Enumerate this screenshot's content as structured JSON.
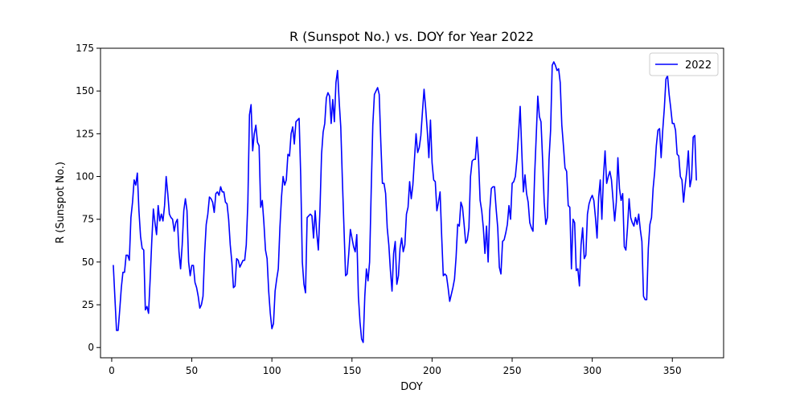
{
  "chart_data": {
    "type": "line",
    "title": "R (Sunspot No.) vs. DOY for Year 2022",
    "xlabel": "DOY",
    "ylabel": "R (Sunspot No.)",
    "xlim": [
      -7,
      382
    ],
    "ylim": [
      -6,
      175
    ],
    "xticks": [
      0,
      50,
      100,
      150,
      200,
      250,
      300,
      350
    ],
    "yticks": [
      0,
      25,
      50,
      75,
      100,
      125,
      150,
      175
    ],
    "grid": false,
    "legend_position": "top-right",
    "series": [
      {
        "name": "2022",
        "color": "#0000ff",
        "x": [
          1,
          2,
          3,
          4,
          5,
          6,
          7,
          8,
          9,
          10,
          11,
          12,
          13,
          14,
          15,
          16,
          17,
          18,
          19,
          20,
          21,
          22,
          23,
          24,
          25,
          26,
          27,
          28,
          29,
          30,
          31,
          32,
          33,
          34,
          35,
          36,
          37,
          38,
          39,
          40,
          41,
          42,
          43,
          44,
          45,
          46,
          47,
          48,
          49,
          50,
          51,
          52,
          53,
          54,
          55,
          56,
          57,
          58,
          59,
          60,
          61,
          62,
          63,
          64,
          65,
          66,
          67,
          68,
          69,
          70,
          71,
          72,
          73,
          74,
          75,
          76,
          77,
          78,
          79,
          80,
          81,
          82,
          83,
          84,
          85,
          86,
          87,
          88,
          89,
          90,
          91,
          92,
          93,
          94,
          95,
          96,
          97,
          98,
          99,
          100,
          101,
          102,
          103,
          104,
          105,
          106,
          107,
          108,
          109,
          110,
          111,
          112,
          113,
          114,
          115,
          116,
          117,
          118,
          119,
          120,
          121,
          122,
          123,
          124,
          125,
          126,
          127,
          128,
          129,
          130,
          131,
          132,
          133,
          134,
          135,
          136,
          137,
          138,
          139,
          140,
          141,
          142,
          143,
          144,
          145,
          146,
          147,
          148,
          149,
          150,
          151,
          152,
          153,
          154,
          155,
          156,
          157,
          158,
          159,
          160,
          161,
          162,
          163,
          164,
          165,
          166,
          167,
          168,
          169,
          170,
          171,
          172,
          173,
          174,
          175,
          176,
          177,
          178,
          179,
          180,
          181,
          182,
          183,
          184,
          185,
          186,
          187,
          188,
          189,
          190,
          191,
          192,
          193,
          194,
          195,
          196,
          197,
          198,
          199,
          200,
          201,
          202,
          203,
          204,
          205,
          206,
          207,
          208,
          209,
          210,
          211,
          212,
          213,
          214,
          215,
          216,
          217,
          218,
          219,
          220,
          221,
          222,
          223,
          224,
          225,
          226,
          227,
          228,
          229,
          230,
          231,
          232,
          233,
          234,
          235,
          236,
          237,
          238,
          239,
          240,
          241,
          242,
          243,
          244,
          245,
          246,
          247,
          248,
          249,
          250,
          251,
          252,
          253,
          254,
          255,
          256,
          257,
          258,
          259,
          260,
          261,
          262,
          263,
          264,
          265,
          266,
          267,
          268,
          269,
          270,
          271,
          272,
          273,
          274,
          275,
          276,
          277,
          278,
          279,
          280,
          281,
          282,
          283,
          284,
          285,
          286,
          287,
          288,
          289,
          290,
          291,
          292,
          293,
          294,
          295,
          296,
          297,
          298,
          299,
          300,
          301,
          302,
          303,
          304,
          305,
          306,
          307,
          308,
          309,
          310,
          311,
          312,
          313,
          314,
          315,
          316,
          317,
          318,
          319,
          320,
          321,
          322,
          323,
          324,
          325,
          326,
          327,
          328,
          329,
          330,
          331,
          332,
          333,
          334,
          335,
          336,
          337,
          338,
          339,
          340,
          341,
          342,
          343,
          344,
          345,
          346,
          347,
          348,
          349,
          350,
          351,
          352,
          353,
          354,
          355,
          356,
          357,
          358,
          359,
          360,
          361,
          362,
          363,
          364,
          365
        ],
        "values": [
          48,
          29,
          10,
          10,
          22,
          35,
          44,
          44,
          54,
          54,
          51,
          76,
          85,
          98,
          95,
          102,
          80,
          65,
          58,
          57,
          22,
          24,
          20,
          40,
          62,
          81,
          73,
          66,
          83,
          74,
          78,
          74,
          83,
          100,
          90,
          78,
          76,
          75,
          68,
          73,
          75,
          56,
          46,
          60,
          80,
          87,
          80,
          50,
          42,
          48,
          48,
          38,
          35,
          30,
          23,
          25,
          30,
          55,
          72,
          78,
          88,
          87,
          85,
          79,
          90,
          91,
          89,
          94,
          91,
          91,
          85,
          84,
          75,
          60,
          50,
          35,
          36,
          52,
          51,
          47,
          49,
          51,
          51,
          60,
          85,
          136,
          142,
          115,
          125,
          130,
          120,
          118,
          82,
          86,
          73,
          57,
          52,
          33,
          20,
          11,
          14,
          33,
          40,
          46,
          70,
          88,
          100,
          95,
          98,
          113,
          112,
          125,
          129,
          119,
          132,
          133,
          134,
          100,
          50,
          37,
          32,
          76,
          77,
          78,
          77,
          64,
          80,
          67,
          57,
          80,
          113,
          126,
          131,
          146,
          149,
          147,
          131,
          145,
          132,
          155,
          162,
          144,
          129,
          98,
          70,
          42,
          43,
          55,
          69,
          64,
          59,
          56,
          66,
          30,
          15,
          5,
          3,
          30,
          46,
          39,
          50,
          92,
          130,
          148,
          150,
          152,
          148,
          120,
          96,
          96,
          90,
          70,
          60,
          45,
          33,
          55,
          62,
          37,
          42,
          58,
          64,
          56,
          60,
          78,
          82,
          97,
          87,
          95,
          110,
          125,
          114,
          117,
          124,
          138,
          151,
          140,
          127,
          111,
          133,
          108,
          98,
          97,
          80,
          85,
          91,
          65,
          42,
          43,
          42,
          35,
          27,
          31,
          35,
          40,
          53,
          72,
          71,
          85,
          82,
          72,
          61,
          63,
          70,
          100,
          109,
          110,
          110,
          123,
          110,
          86,
          80,
          70,
          55,
          71,
          50,
          80,
          93,
          94,
          94,
          81,
          70,
          47,
          43,
          62,
          63,
          67,
          72,
          83,
          75,
          96,
          97,
          100,
          110,
          125,
          141,
          115,
          91,
          101,
          90,
          85,
          73,
          70,
          68,
          100,
          123,
          147,
          135,
          132,
          110,
          85,
          72,
          76,
          110,
          127,
          165,
          167,
          165,
          162,
          163,
          155,
          130,
          118,
          105,
          103,
          83,
          82,
          46,
          75,
          73,
          45,
          46,
          36,
          60,
          70,
          52,
          54,
          78,
          84,
          87,
          89,
          86,
          76,
          64,
          88,
          98,
          75,
          100,
          115,
          96,
          100,
          103,
          98,
          86,
          74,
          85,
          111,
          93,
          86,
          90,
          59,
          57,
          70,
          87,
          76,
          73,
          71,
          76,
          72,
          78,
          69,
          62,
          30,
          28,
          28,
          58,
          72,
          76,
          93,
          103,
          118,
          127,
          128,
          111,
          127,
          140,
          157,
          159,
          148,
          140,
          131,
          131,
          127,
          113,
          112,
          100,
          98,
          85,
          95,
          103,
          115,
          94,
          99,
          123,
          124,
          98
        ]
      }
    ]
  }
}
